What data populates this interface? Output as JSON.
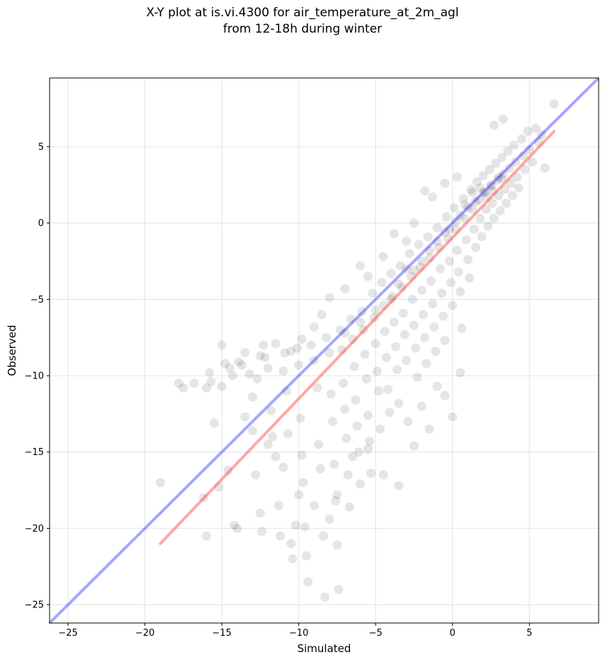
{
  "chart_data": {
    "type": "scatter",
    "title_line1": "X-Y plot at is.vi.4300 for air_temperature_at_2m_agl",
    "title_line2": "from 12-18h during winter",
    "xlabel": "Simulated",
    "ylabel": "Observed",
    "xlim": [
      -26.2,
      9.5
    ],
    "ylim": [
      -26.2,
      9.5
    ],
    "xticks": [
      -25,
      -20,
      -15,
      -10,
      -5,
      0,
      5
    ],
    "yticks": [
      -25,
      -20,
      -15,
      -10,
      -5,
      0,
      5
    ],
    "xtick_labels": [
      "−25",
      "−20",
      "−15",
      "−10",
      "−5",
      "0",
      "5"
    ],
    "ytick_labels": [
      "−25",
      "−20",
      "−15",
      "−10",
      "−5",
      "0",
      "5"
    ],
    "grid": true,
    "marker_color": "#000000",
    "marker_alpha": 0.1,
    "identity_line": {
      "color": "#0000ff",
      "from": [
        -26.2,
        -26.2
      ],
      "to": [
        9.5,
        9.5
      ]
    },
    "fit_line": {
      "color": "#ff3b3b",
      "from": [
        -19,
        -21
      ],
      "to": [
        6.6,
        6
      ]
    },
    "points": [
      [
        -19.0,
        -17.0
      ],
      [
        -17.8,
        -10.5
      ],
      [
        -17.5,
        -10.8
      ],
      [
        -16.8,
        -10.5
      ],
      [
        -16.2,
        -18.0
      ],
      [
        -16.0,
        -20.5
      ],
      [
        -15.8,
        -9.8
      ],
      [
        -15.7,
        -10.4
      ],
      [
        -15.5,
        -13.1
      ],
      [
        -15.2,
        -17.3
      ],
      [
        -15.0,
        -10.7
      ],
      [
        -14.8,
        -9.2
      ],
      [
        -14.6,
        -16.2
      ],
      [
        -14.3,
        -10.0
      ],
      [
        -14.2,
        -19.8
      ],
      [
        -14.0,
        -20.0
      ],
      [
        -13.9,
        -9.1
      ],
      [
        -13.7,
        -9.3
      ],
      [
        -13.5,
        -12.7
      ],
      [
        -13.2,
        -9.9
      ],
      [
        -13.0,
        -11.4
      ],
      [
        -12.8,
        -16.5
      ],
      [
        -12.7,
        -10.2
      ],
      [
        -12.5,
        -19.0
      ],
      [
        -12.4,
        -20.2
      ],
      [
        -12.3,
        -8.0
      ],
      [
        -12.2,
        -8.8
      ],
      [
        -12.0,
        -9.5
      ],
      [
        -11.8,
        -12.3
      ],
      [
        -11.7,
        -14.0
      ],
      [
        -11.5,
        -15.3
      ],
      [
        -11.3,
        -18.5
      ],
      [
        -11.2,
        -20.5
      ],
      [
        -11.0,
        -9.7
      ],
      [
        -10.9,
        -8.5
      ],
      [
        -10.8,
        -11.0
      ],
      [
        -10.7,
        -13.8
      ],
      [
        -10.5,
        -21.0
      ],
      [
        -10.4,
        -22.0
      ],
      [
        -10.2,
        -19.8
      ],
      [
        -10.1,
        -8.2
      ],
      [
        -10.0,
        -9.3
      ],
      [
        -9.9,
        -12.8
      ],
      [
        -9.8,
        -15.2
      ],
      [
        -9.7,
        -17.0
      ],
      [
        -9.6,
        -19.9
      ],
      [
        -9.5,
        -21.8
      ],
      [
        -9.4,
        -23.5
      ],
      [
        -9.2,
        -8.0
      ],
      [
        -9.0,
        -9.0
      ],
      [
        -8.8,
        -10.8
      ],
      [
        -8.7,
        -14.5
      ],
      [
        -8.6,
        -16.1
      ],
      [
        -8.4,
        -20.5
      ],
      [
        -8.3,
        -24.5
      ],
      [
        -8.2,
        -7.5
      ],
      [
        -8.0,
        -8.5
      ],
      [
        -7.9,
        -11.2
      ],
      [
        -7.8,
        -13.0
      ],
      [
        -7.7,
        -15.8
      ],
      [
        -7.6,
        -18.2
      ],
      [
        -7.5,
        -21.1
      ],
      [
        -7.4,
        -24.0
      ],
      [
        -7.3,
        -7.0
      ],
      [
        -7.2,
        -8.3
      ],
      [
        -7.1,
        -10.5
      ],
      [
        -7.0,
        -12.2
      ],
      [
        -6.9,
        -14.1
      ],
      [
        -6.8,
        -16.5
      ],
      [
        -6.7,
        -18.6
      ],
      [
        -6.6,
        -6.3
      ],
      [
        -6.5,
        -7.6
      ],
      [
        -6.4,
        -9.4
      ],
      [
        -6.3,
        -11.6
      ],
      [
        -6.2,
        -13.3
      ],
      [
        -6.1,
        -15.0
      ],
      [
        -6.0,
        -17.1
      ],
      [
        -5.9,
        -5.8
      ],
      [
        -5.8,
        -7.0
      ],
      [
        -5.7,
        -8.6
      ],
      [
        -5.6,
        -10.2
      ],
      [
        -5.5,
        -12.6
      ],
      [
        -5.4,
        -14.3
      ],
      [
        -5.3,
        -16.4
      ],
      [
        -5.2,
        -4.6
      ],
      [
        -5.1,
        -6.2
      ],
      [
        -5.0,
        -7.9
      ],
      [
        -4.9,
        -9.7
      ],
      [
        -4.8,
        -11.0
      ],
      [
        -4.7,
        -13.5
      ],
      [
        -4.6,
        -3.9
      ],
      [
        -4.5,
        -5.4
      ],
      [
        -4.4,
        -7.1
      ],
      [
        -4.3,
        -8.8
      ],
      [
        -4.2,
        -10.9
      ],
      [
        -4.1,
        -12.4
      ],
      [
        -4.0,
        -3.3
      ],
      [
        -3.9,
        -4.8
      ],
      [
        -3.8,
        -6.5
      ],
      [
        -3.7,
        -8.1
      ],
      [
        -3.6,
        -9.6
      ],
      [
        -3.5,
        -11.8
      ],
      [
        -3.4,
        -2.8
      ],
      [
        -3.3,
        -4.2
      ],
      [
        -3.2,
        -5.9
      ],
      [
        -3.1,
        -7.3
      ],
      [
        -3.0,
        -9.0
      ],
      [
        -2.9,
        -13.0
      ],
      [
        -2.8,
        -2.0
      ],
      [
        -2.7,
        -3.5
      ],
      [
        -2.6,
        -5.0
      ],
      [
        -2.5,
        -6.7
      ],
      [
        -2.4,
        -8.2
      ],
      [
        -2.3,
        -10.1
      ],
      [
        -2.2,
        -1.4
      ],
      [
        -2.1,
        -2.9
      ],
      [
        -2.0,
        -4.4
      ],
      [
        -1.9,
        -6.0
      ],
      [
        -1.8,
        -7.5
      ],
      [
        -1.7,
        -9.2
      ],
      [
        -1.6,
        -0.9
      ],
      [
        -1.5,
        -2.3
      ],
      [
        -1.4,
        -3.8
      ],
      [
        -1.3,
        -5.3
      ],
      [
        -1.2,
        -6.8
      ],
      [
        -1.1,
        -8.4
      ],
      [
        -1.0,
        -0.3
      ],
      [
        -0.9,
        -1.6
      ],
      [
        -0.8,
        -3.0
      ],
      [
        -0.7,
        -4.6
      ],
      [
        -0.6,
        -6.1
      ],
      [
        -0.5,
        -7.7
      ],
      [
        -0.4,
        0.4
      ],
      [
        -0.3,
        -1.0
      ],
      [
        -0.2,
        -2.5
      ],
      [
        -0.1,
        -3.9
      ],
      [
        0.0,
        -5.4
      ],
      [
        0.0,
        -12.7
      ],
      [
        0.1,
        1.0
      ],
      [
        0.2,
        -0.4
      ],
      [
        0.3,
        -1.8
      ],
      [
        0.4,
        -3.2
      ],
      [
        0.5,
        -4.5
      ],
      [
        0.6,
        -6.9
      ],
      [
        0.7,
        1.6
      ],
      [
        0.8,
        0.3
      ],
      [
        0.9,
        -1.1
      ],
      [
        1.0,
        -2.4
      ],
      [
        1.1,
        -3.6
      ],
      [
        1.2,
        2.2
      ],
      [
        1.3,
        0.9
      ],
      [
        1.4,
        -0.4
      ],
      [
        1.5,
        -1.6
      ],
      [
        1.6,
        2.7
      ],
      [
        1.7,
        1.5
      ],
      [
        1.8,
        0.3
      ],
      [
        1.9,
        -0.9
      ],
      [
        2.0,
        3.1
      ],
      [
        2.1,
        2.0
      ],
      [
        2.2,
        0.9
      ],
      [
        2.3,
        -0.2
      ],
      [
        2.4,
        3.5
      ],
      [
        2.5,
        2.4
      ],
      [
        2.6,
        1.3
      ],
      [
        2.7,
        0.3
      ],
      [
        2.8,
        3.9
      ],
      [
        2.9,
        2.8
      ],
      [
        3.0,
        1.8
      ],
      [
        3.1,
        0.8
      ],
      [
        3.2,
        4.3
      ],
      [
        3.3,
        3.2
      ],
      [
        3.4,
        2.2
      ],
      [
        3.5,
        1.3
      ],
      [
        3.6,
        4.7
      ],
      [
        3.7,
        3.6
      ],
      [
        3.8,
        2.6
      ],
      [
        3.9,
        1.8
      ],
      [
        4.0,
        5.1
      ],
      [
        4.1,
        4.0
      ],
      [
        4.2,
        3.0
      ],
      [
        4.3,
        2.3
      ],
      [
        4.5,
        5.5
      ],
      [
        4.6,
        4.4
      ],
      [
        4.7,
        3.5
      ],
      [
        4.9,
        6.0
      ],
      [
        5.0,
        4.8
      ],
      [
        5.2,
        4.0
      ],
      [
        5.4,
        6.2
      ],
      [
        5.6,
        5.3
      ],
      [
        5.8,
        5.8
      ],
      [
        6.0,
        3.6
      ],
      [
        6.6,
        7.8
      ],
      [
        2.7,
        6.4
      ],
      [
        3.3,
        6.8
      ],
      [
        -1.8,
        2.1
      ],
      [
        -1.3,
        1.7
      ],
      [
        -0.5,
        2.6
      ],
      [
        0.3,
        3.0
      ],
      [
        -3.8,
        -0.7
      ],
      [
        -3.0,
        -1.2
      ],
      [
        -2.5,
        0.0
      ],
      [
        -4.5,
        -2.2
      ],
      [
        -5.5,
        -3.5
      ],
      [
        -6.0,
        -2.8
      ],
      [
        -7.0,
        -4.3
      ],
      [
        -8.0,
        -4.9
      ],
      [
        -8.5,
        -6.0
      ],
      [
        -9.0,
        -6.8
      ],
      [
        -9.8,
        -7.6
      ],
      [
        -10.5,
        -8.4
      ],
      [
        -11.5,
        -7.9
      ],
      [
        -12.5,
        -8.7
      ],
      [
        -13.5,
        -8.5
      ],
      [
        -14.5,
        -9.5
      ],
      [
        -15.0,
        -8.0
      ],
      [
        -16.0,
        -10.8
      ],
      [
        -13.0,
        -13.6
      ],
      [
        -12.0,
        -14.5
      ],
      [
        -11.0,
        -16.0
      ],
      [
        -10.0,
        -17.8
      ],
      [
        -9.0,
        -18.5
      ],
      [
        -8.0,
        -19.4
      ],
      [
        -7.5,
        -17.8
      ],
      [
        -6.5,
        -15.3
      ],
      [
        -5.5,
        -14.8
      ],
      [
        -4.5,
        -16.5
      ],
      [
        -3.5,
        -17.2
      ],
      [
        -2.5,
        -14.6
      ],
      [
        -2.0,
        -12.0
      ],
      [
        -1.5,
        -13.5
      ],
      [
        -1.0,
        -10.7
      ],
      [
        -0.5,
        -11.3
      ],
      [
        0.5,
        -9.8
      ],
      [
        -3.0,
        -3.0
      ],
      [
        -2.0,
        -2.5
      ],
      [
        -1.5,
        -1.8
      ],
      [
        -1.0,
        -1.2
      ],
      [
        -0.5,
        -0.6
      ],
      [
        0.5,
        0.5
      ],
      [
        1.0,
        1.0
      ],
      [
        1.5,
        1.4
      ],
      [
        2.0,
        2.0
      ],
      [
        2.5,
        2.5
      ],
      [
        3.0,
        3.0
      ],
      [
        1.8,
        2.3
      ],
      [
        2.2,
        1.7
      ],
      [
        0.2,
        0.1
      ],
      [
        -0.2,
        -0.4
      ],
      [
        0.8,
        1.2
      ],
      [
        1.3,
        2.0
      ],
      [
        2.6,
        2.1
      ],
      [
        3.2,
        2.9
      ],
      [
        -4.0,
        -5.0
      ],
      [
        -5.0,
        -5.7
      ],
      [
        -6.0,
        -6.5
      ],
      [
        -7.0,
        -7.2
      ],
      [
        -3.5,
        -4.0
      ],
      [
        -2.5,
        -3.1
      ]
    ]
  }
}
